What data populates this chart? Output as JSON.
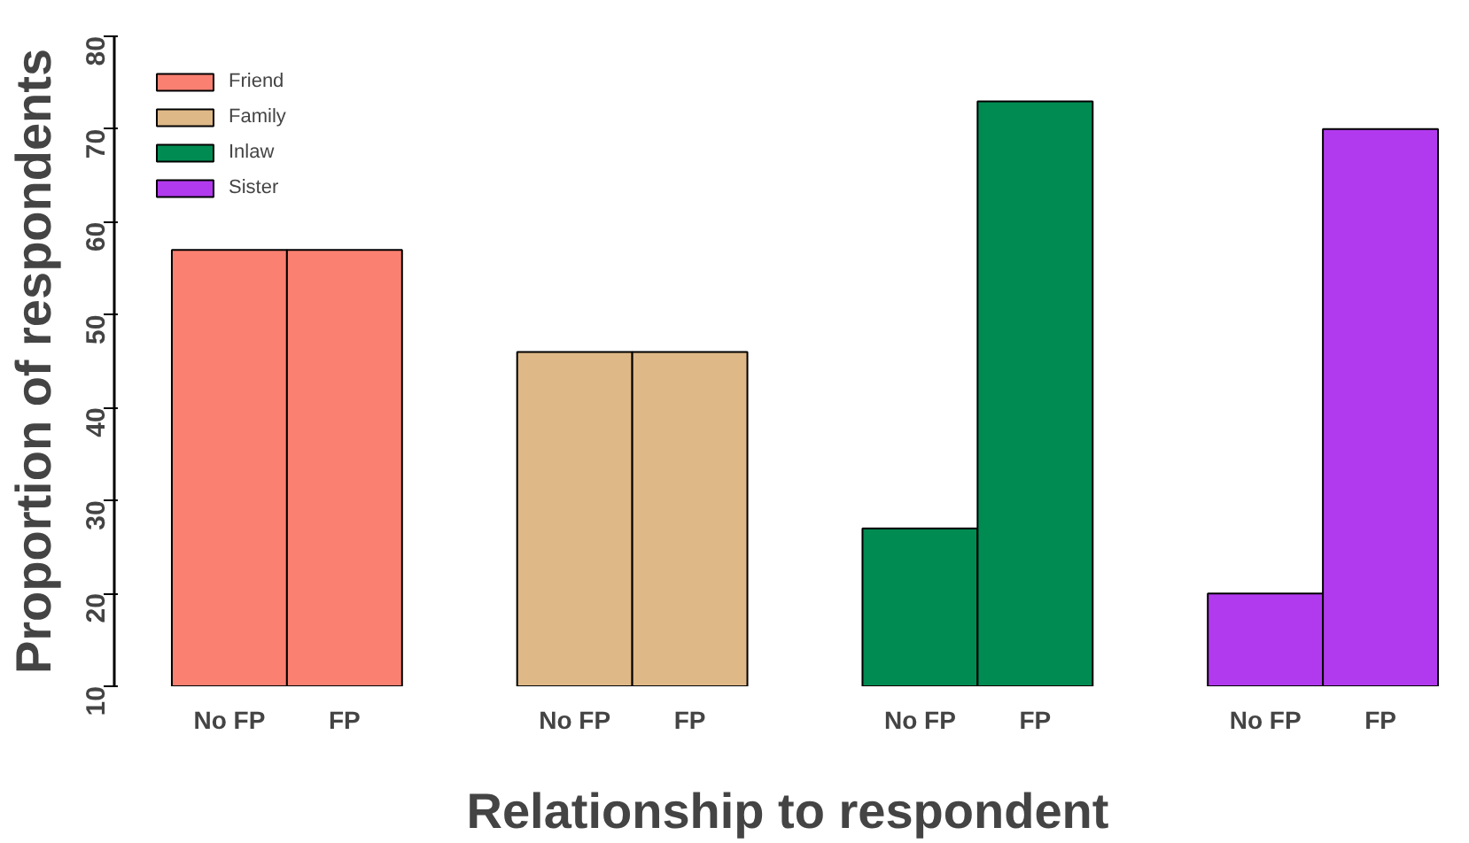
{
  "chart_data": {
    "type": "bar",
    "xlabel": "Relationship to respondent",
    "ylabel": "Proportion of respondents",
    "categories": [
      "No FP",
      "FP",
      "No FP",
      "FP",
      "No FP",
      "FP",
      "No FP",
      "FP"
    ],
    "series": [
      {
        "name": "Friend",
        "color": "#fa8072",
        "values": [
          57,
          57,
          null,
          null,
          null,
          null,
          null,
          null
        ]
      },
      {
        "name": "Family",
        "color": "#deb887",
        "values": [
          null,
          null,
          46,
          46,
          null,
          null,
          null,
          null
        ]
      },
      {
        "name": "Inlaw",
        "color": "#008b52",
        "values": [
          null,
          null,
          null,
          null,
          27,
          73,
          null,
          null
        ]
      },
      {
        "name": "Sister",
        "color": "#b23aee",
        "values": [
          null,
          null,
          null,
          null,
          null,
          null,
          20,
          70
        ]
      }
    ],
    "ylim": [
      10,
      80
    ],
    "yticks": [
      10,
      20,
      30,
      40,
      50,
      60,
      70,
      80
    ],
    "grid": false,
    "legend": "top left"
  }
}
